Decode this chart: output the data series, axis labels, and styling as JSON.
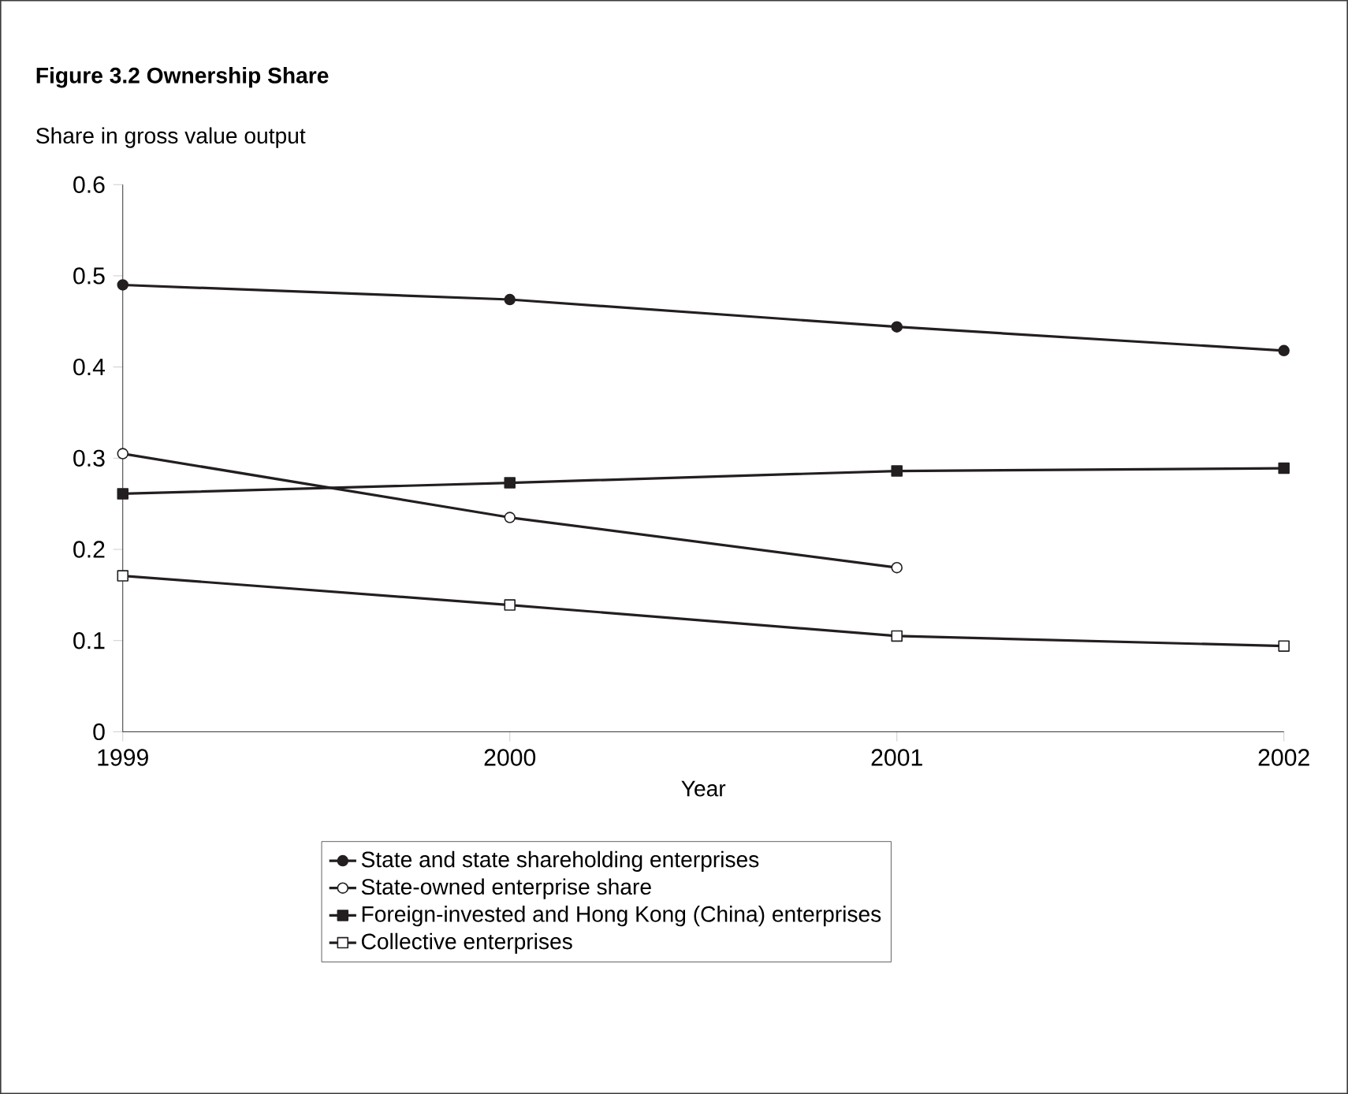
{
  "chart_data": {
    "type": "line",
    "title": "Figure 3.2  Ownership Share",
    "ylabel": "Share in gross value output",
    "xlabel": "Year",
    "x": [
      1999,
      2000,
      2001,
      2002
    ],
    "xlim": [
      1999,
      2002
    ],
    "xticks": [
      1999,
      2000,
      2001,
      2002
    ],
    "ylim": [
      0,
      0.6
    ],
    "yticks": [
      0,
      0.1,
      0.2,
      0.3,
      0.4,
      0.5,
      0.6
    ],
    "grid": false,
    "legend": "bottom",
    "line_style": "solid",
    "series": [
      {
        "name": "State and state shareholding enterprises",
        "color": "#231f20",
        "marker": "circle",
        "values": [
          0.49,
          0.474,
          0.444,
          0.418
        ]
      },
      {
        "name": "State-owned enterprise share",
        "color": "#231f20",
        "marker": "circle",
        "values": [
          0.305,
          0.235,
          0.18,
          null
        ]
      },
      {
        "name": "Foreign-invested and Hong Kong (China) enterprises",
        "color": "#231f20",
        "marker": "square",
        "values": [
          0.261,
          0.273,
          0.286,
          0.289
        ]
      },
      {
        "name": "Collective enterprises",
        "color": "#231f20",
        "marker": "square",
        "values": [
          0.171,
          0.139,
          0.105,
          0.094
        ]
      }
    ]
  }
}
